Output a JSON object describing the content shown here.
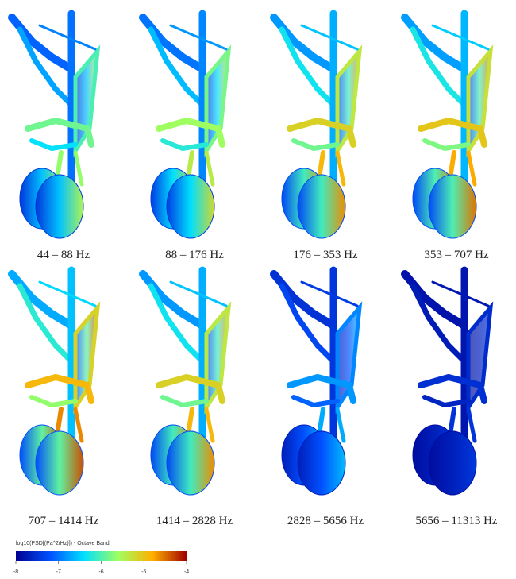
{
  "panels": [
    {
      "label": "44 – 88 Hz"
    },
    {
      "label": "88 – 176 Hz"
    },
    {
      "label": "176 – 353 Hz"
    },
    {
      "label": "353 – 707 Hz"
    },
    {
      "label": "707 – 1414 Hz"
    },
    {
      "label": "1414 – 2828 Hz"
    },
    {
      "label": "2828 – 5656 Hz"
    },
    {
      "label": "5656 – 11313 Hz"
    }
  ],
  "colorbar": {
    "title": "log10(PSD[(Pa^2/Hz)]) - Octave Band",
    "ticks": [
      -8,
      -7,
      -6,
      -5,
      -4
    ]
  }
}
